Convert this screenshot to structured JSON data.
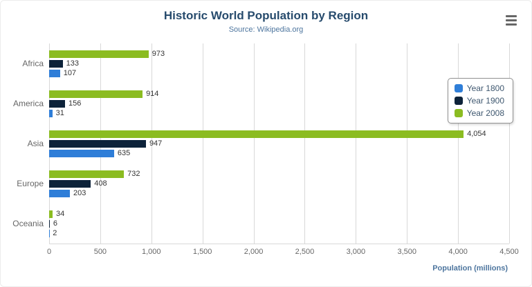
{
  "chart_data": {
    "type": "bar",
    "title": "Historic World Population by Region",
    "subtitle": "Source: Wikipedia.org",
    "categories": [
      "Africa",
      "America",
      "Asia",
      "Europe",
      "Oceania"
    ],
    "series": [
      {
        "name": "Year 1800",
        "color": "#2f7ed8",
        "values": [
          107,
          31,
          635,
          203,
          2
        ],
        "labels": [
          "107",
          "31",
          "635",
          "203",
          "2"
        ]
      },
      {
        "name": "Year 1900",
        "color": "#0d233a",
        "values": [
          133,
          156,
          947,
          408,
          6
        ],
        "labels": [
          "133",
          "156",
          "947",
          "408",
          "6"
        ]
      },
      {
        "name": "Year 2008",
        "color": "#8bbc21",
        "values": [
          973,
          914,
          4054,
          732,
          34
        ],
        "labels": [
          "973",
          "914",
          "4,054",
          "732",
          "34"
        ]
      }
    ],
    "series_draw_order_top_to_bottom": [
      "Year 2008",
      "Year 1900",
      "Year 1800"
    ],
    "xlabel": "Population (millions)",
    "xlim": [
      0,
      4500
    ],
    "xticks": [
      0,
      500,
      1000,
      1500,
      2000,
      2500,
      3000,
      3500,
      4000,
      4500
    ],
    "xtick_labels": [
      "0",
      "500",
      "1,000",
      "1,500",
      "2,000",
      "2,500",
      "3,000",
      "3,500",
      "4,000",
      "4,500"
    ],
    "grid": true,
    "legend_position": "right",
    "colors": {
      "title": "#274b6d",
      "subtitle": "#4d759e",
      "axis_title": "#4d759e",
      "gridline": "#d8d8d8",
      "tick_label": "#666666"
    }
  },
  "menu": {
    "icon": "hamburger-menu-icon"
  }
}
